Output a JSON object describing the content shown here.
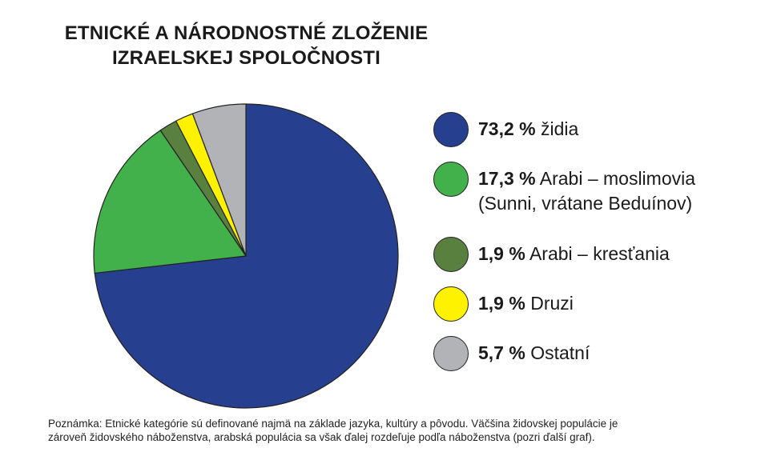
{
  "title_lines": [
    "ETNICKÉ A NÁRODNOSTNÉ ZLOŽENIE",
    "IZRAELSKEJ SPOLOČNOSTI"
  ],
  "note_lines": [
    "Poznámka: Etnické kategórie sú definované najmä na základe jazyka, kultúry a pôvodu. Väčšina židovskej populácie je",
    "zároveň židovského náboženstva, arabská populácia sa však ďalej rozdeľuje podľa náboženstva (pozri ďalší graf)."
  ],
  "chart_data": {
    "type": "pie",
    "title": "ETNICKÉ A NÁRODNOSTNÉ ZLOŽENIE IZRAELSKEJ SPOLOČNOSTI",
    "slices": [
      {
        "value": 73.2,
        "pct_label": "73,2 %",
        "label_lines": [
          "židia"
        ],
        "color": "#263f8f"
      },
      {
        "value": 17.3,
        "pct_label": "17,3 %",
        "label_lines": [
          "Arabi – moslimovia",
          "(Sunni, vrátane Beduínov)"
        ],
        "color": "#43b14b"
      },
      {
        "value": 1.9,
        "pct_label": "1,9 %",
        "label_lines": [
          "Arabi – kresťania"
        ],
        "color": "#5a8040"
      },
      {
        "value": 1.9,
        "pct_label": "1,9 %",
        "label_lines": [
          "Druzi"
        ],
        "color": "#fff200"
      },
      {
        "value": 5.7,
        "pct_label": "5,7 %",
        "label_lines": [
          "Ostatní"
        ],
        "color": "#b1b3b6"
      }
    ],
    "legend_position": "right",
    "start_angle": "12 o'clock",
    "direction": "clockwise"
  }
}
